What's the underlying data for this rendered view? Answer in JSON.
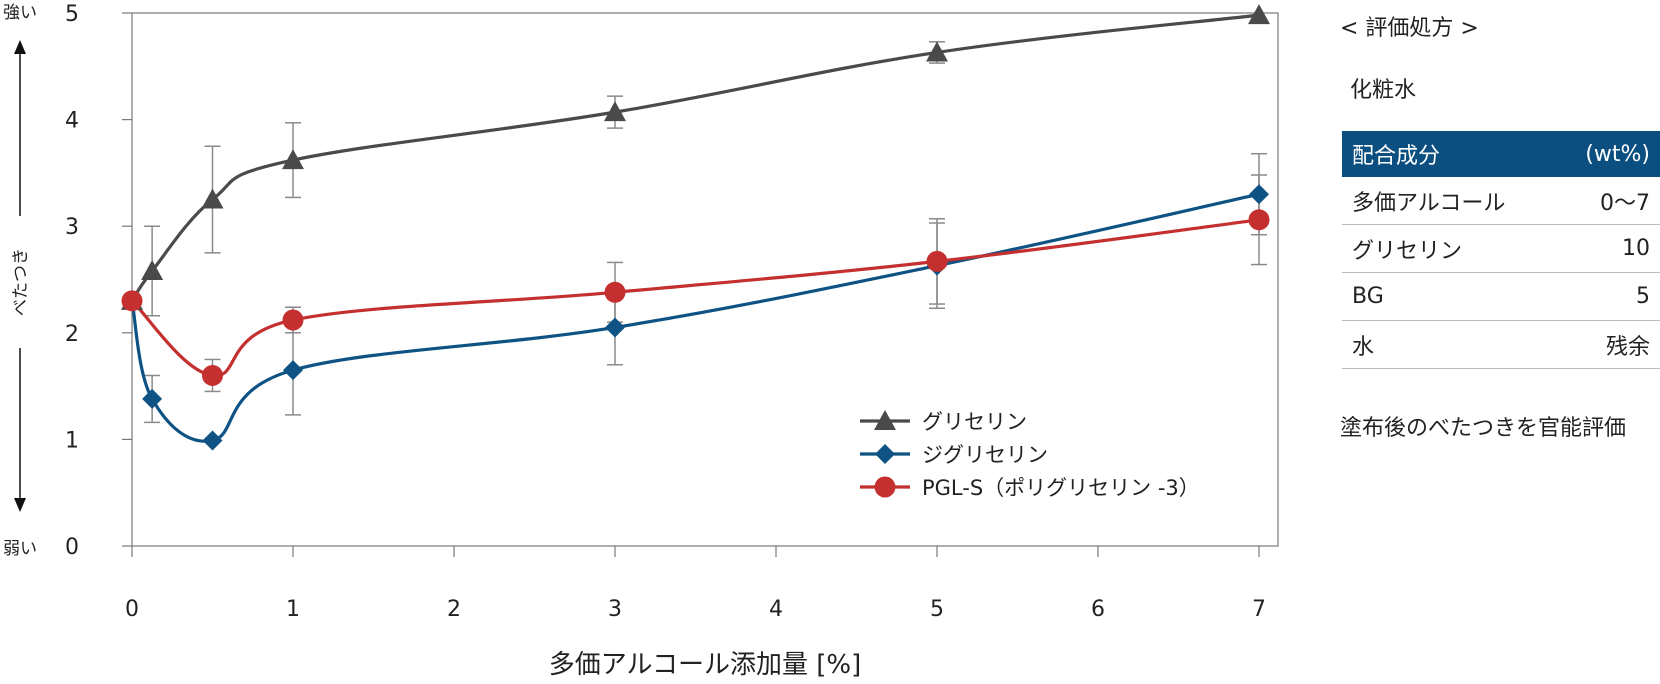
{
  "chart_data": {
    "type": "line",
    "xlabel": "多価アルコール添加量 [%]",
    "ylabel": "べたつき",
    "y_top_label": "強い",
    "y_bottom_label": "弱い",
    "xlim": [
      0,
      7
    ],
    "ylim": [
      0,
      5
    ],
    "x_ticks": [
      "0",
      "1",
      "2",
      "3",
      "4",
      "5",
      "6",
      "7"
    ],
    "y_ticks": [
      "0",
      "1",
      "2",
      "3",
      "4",
      "5"
    ],
    "legend_position": "bottom-right inside plot",
    "grid": false,
    "series": [
      {
        "name": "グリセリン",
        "color": "#4a4a4a",
        "marker": "triangle",
        "points": [
          {
            "x": 0,
            "y": 2.3,
            "err": null
          },
          {
            "x": 0.125,
            "y": 2.58,
            "err": 0.42
          },
          {
            "x": 0.5,
            "y": 3.25,
            "err": 0.5
          },
          {
            "x": 1,
            "y": 3.62,
            "err": 0.35
          },
          {
            "x": 3,
            "y": 4.07,
            "err": 0.15
          },
          {
            "x": 5,
            "y": 4.63,
            "err": 0.1
          },
          {
            "x": 7,
            "y": 4.98,
            "err": null
          }
        ]
      },
      {
        "name": "ジグリセリン",
        "color": "#0e5384",
        "marker": "diamond",
        "points": [
          {
            "x": 0,
            "y": 2.3,
            "err": null
          },
          {
            "x": 0.125,
            "y": 1.38,
            "err": 0.22
          },
          {
            "x": 0.5,
            "y": 0.99,
            "err": null
          },
          {
            "x": 1,
            "y": 1.65,
            "err": 0.42
          },
          {
            "x": 3,
            "y": 2.05,
            "err": 0.35
          },
          {
            "x": 5,
            "y": 2.63,
            "err": 0.4
          },
          {
            "x": 7,
            "y": 3.3,
            "err": 0.38
          }
        ]
      },
      {
        "name": "PGL-S（ポリグリセリン -3）",
        "color": "#c4302f",
        "marker": "circle",
        "points": [
          {
            "x": 0,
            "y": 2.3,
            "err": null
          },
          {
            "x": 0.5,
            "y": 1.6,
            "err": 0.15
          },
          {
            "x": 1,
            "y": 2.12,
            "err": 0.12
          },
          {
            "x": 3,
            "y": 2.38,
            "err": 0.28
          },
          {
            "x": 5,
            "y": 2.67,
            "err": 0.4
          },
          {
            "x": 7,
            "y": 3.06,
            "err": 0.42
          }
        ]
      }
    ]
  },
  "panel": {
    "title": "< 評価処方 >",
    "subtitle": "化粧水",
    "table_header": {
      "ingredient": "配合成分",
      "unit": "(wt%)"
    },
    "rows": [
      {
        "name": "多価アルコール",
        "value": "0〜7"
      },
      {
        "name": "グリセリン",
        "value": "10"
      },
      {
        "name": "BG",
        "value": "5"
      },
      {
        "name": "水",
        "value": "残余"
      }
    ],
    "note": "塗布後のべたつきを官能評価"
  }
}
